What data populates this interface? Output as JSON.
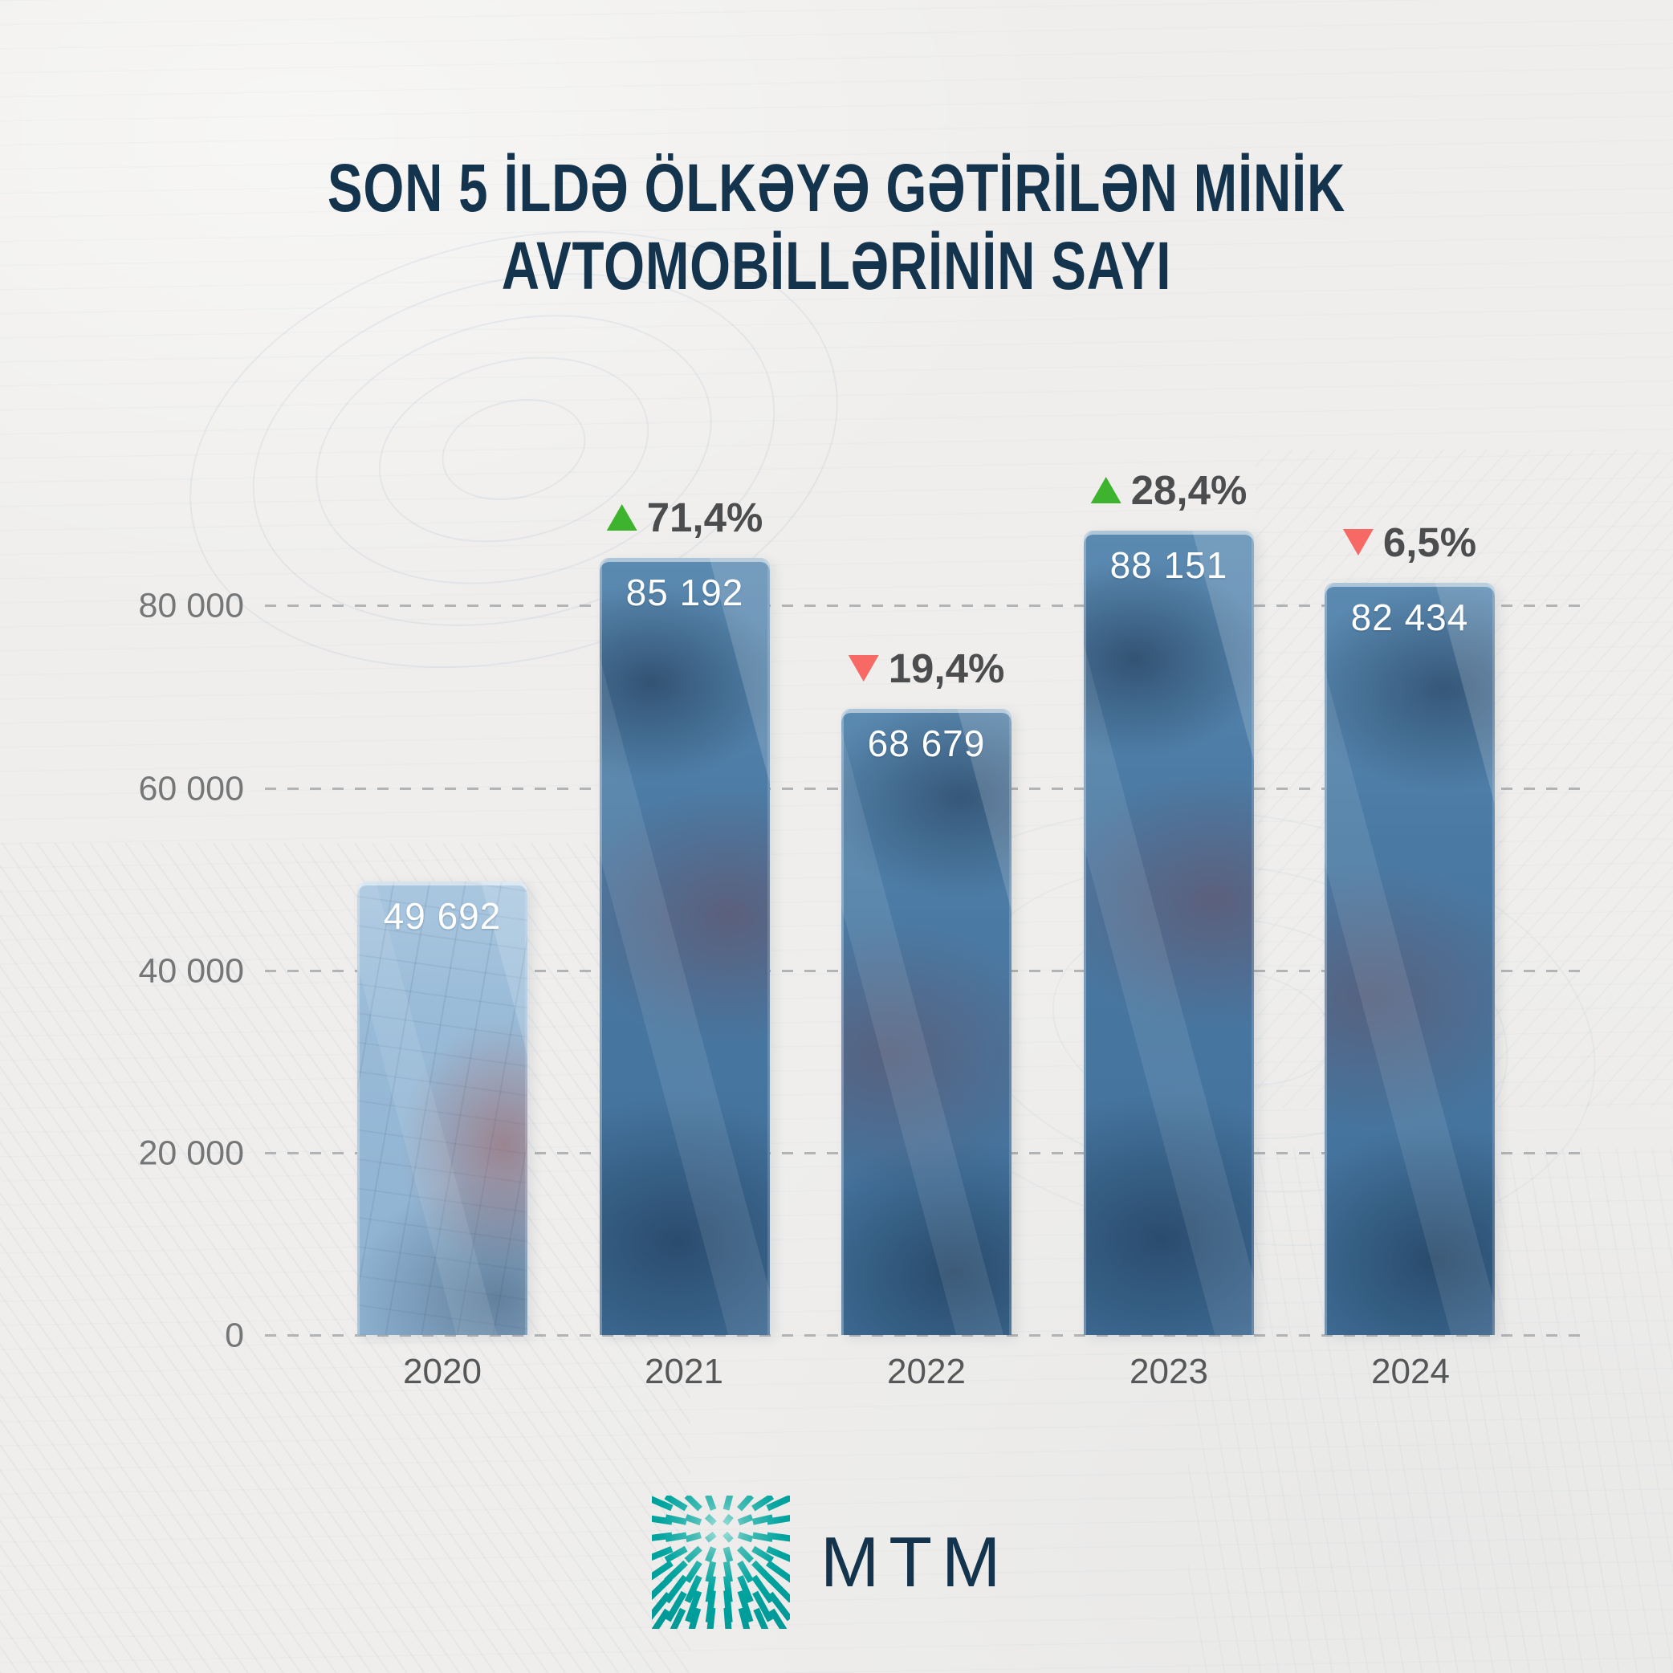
{
  "title": {
    "line1": "SON 5 İLDƏ ÖLKƏYƏ GƏTİRİLƏN MİNİK",
    "line2": "AVTOMOBİLLƏRİNİN SAYI",
    "color": "#14344e"
  },
  "chart_data": {
    "type": "bar",
    "title": "SON 5 İLDƏ ÖLKƏYƏ GƏTİRİLƏN MİNİK AVTOMOBİLLƏRİNİN SAYI",
    "categories": [
      "2020",
      "2021",
      "2022",
      "2023",
      "2024"
    ],
    "values": [
      49692,
      85192,
      68679,
      88151,
      82434
    ],
    "value_labels": [
      "49 692",
      "85 192",
      "68 679",
      "88 151",
      "82 434"
    ],
    "change_labels": [
      "",
      "71,4%",
      "19,4%",
      "28,4%",
      "6,5%"
    ],
    "change_directions": [
      "",
      "up",
      "down",
      "up",
      "down"
    ],
    "yticks": [
      {
        "label": "0",
        "value": 0
      },
      {
        "label": "20 000",
        "value": 20000
      },
      {
        "label": "40 000",
        "value": 40000
      },
      {
        "label": "60 000",
        "value": 60000
      },
      {
        "label": "80 000",
        "value": 80000
      }
    ],
    "ylim": [
      0,
      90000
    ],
    "xlabel": "",
    "ylabel": "",
    "grid": "horizontal-dashed",
    "legend": "none",
    "bar_color_first": "#99bbd8",
    "bar_color_rest": "#4a7aa4",
    "up_color": "#3db32e",
    "down_color": "#f76964"
  },
  "footer": {
    "brand": "MTM",
    "logo_icon": "radial-dashes-burst-icon",
    "logo_color": "#00a49f"
  }
}
